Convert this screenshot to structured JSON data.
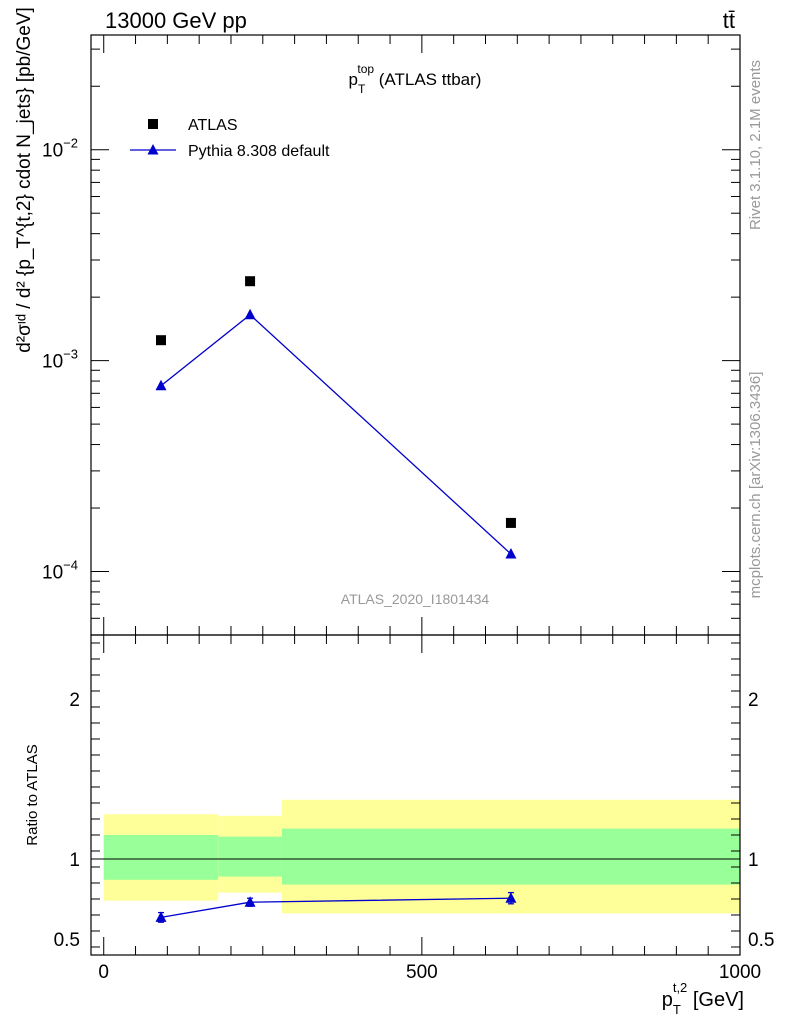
{
  "header": {
    "left": "13000 GeV pp",
    "right": "tt̄"
  },
  "side_labels": {
    "rivet": "Rivet 3.1.10,  2.1M events",
    "mcplots": "mcplots.cern.ch [arXiv:1306.3436]"
  },
  "chart_data": [
    {
      "type": "scatter",
      "panel": "main",
      "title": {
        "base": "p",
        "sub": "T",
        "sup": "top",
        "rest": " (ATLAS ttbar)"
      },
      "watermark": "ATLAS_2020_I1801434",
      "ylabel": "d²σᶦᵈ / d² {p_T^{t,2} cdot N_jets} [pb/GeV]",
      "yscale": "log",
      "ylim": [
        5e-05,
        0.035
      ],
      "xlim": [
        -20,
        1000
      ],
      "grid": false,
      "legend_position": "top-left",
      "y_ticks": [
        {
          "value": 0.0001,
          "label": "10",
          "exp": "−4"
        },
        {
          "value": 0.001,
          "label": "10",
          "exp": "−3"
        },
        {
          "value": 0.01,
          "label": "10",
          "exp": "−2"
        }
      ],
      "series": [
        {
          "name": "ATLAS",
          "marker": "square",
          "color": "#000000",
          "points": [
            {
              "x": 90,
              "y": 0.00125
            },
            {
              "x": 230,
              "y": 0.00238
            },
            {
              "x": 640,
              "y": 0.00017
            }
          ]
        },
        {
          "name": "Pythia 8.308 default",
          "marker": "triangle",
          "color": "#0000cc",
          "line": true,
          "points": [
            {
              "x": 90,
              "y": 0.00076
            },
            {
              "x": 230,
              "y": 0.00165
            },
            {
              "x": 640,
              "y": 0.000121
            }
          ]
        }
      ]
    },
    {
      "type": "scatter",
      "panel": "ratio",
      "ylabel": "Ratio to ATLAS",
      "xlabel": {
        "base": "p",
        "sub": "T",
        "sup": "t,2",
        "rest": " [GeV]"
      },
      "xlim": [
        -20,
        1000
      ],
      "ylim": [
        0.4,
        2.4
      ],
      "grid": false,
      "x_ticks": [
        0,
        500,
        1000
      ],
      "y_ticks": [
        0.5,
        1,
        2
      ],
      "reference_line": 1,
      "bands": [
        {
          "x0": 0,
          "x1": 180,
          "yellow": [
            0.74,
            1.28
          ],
          "green": [
            0.87,
            1.15
          ]
        },
        {
          "x0": 180,
          "x1": 280,
          "yellow": [
            0.79,
            1.27
          ],
          "green": [
            0.89,
            1.14
          ]
        },
        {
          "x0": 280,
          "x1": 1000,
          "yellow": [
            0.66,
            1.37
          ],
          "green": [
            0.84,
            1.19
          ]
        }
      ],
      "series": [
        {
          "name": "Pythia 8.308 default",
          "marker": "triangle",
          "color": "#0000cc",
          "line": true,
          "points": [
            {
              "x": 90,
              "y": 0.635,
              "err": 0.03
            },
            {
              "x": 230,
              "y": 0.73,
              "err": 0.025
            },
            {
              "x": 640,
              "y": 0.755,
              "err": 0.035
            }
          ]
        }
      ]
    }
  ],
  "colors": {
    "band_yellow": "#ffff99",
    "band_green": "#99ff99",
    "mc_blue": "#0000cc",
    "side_text": "#999999"
  }
}
